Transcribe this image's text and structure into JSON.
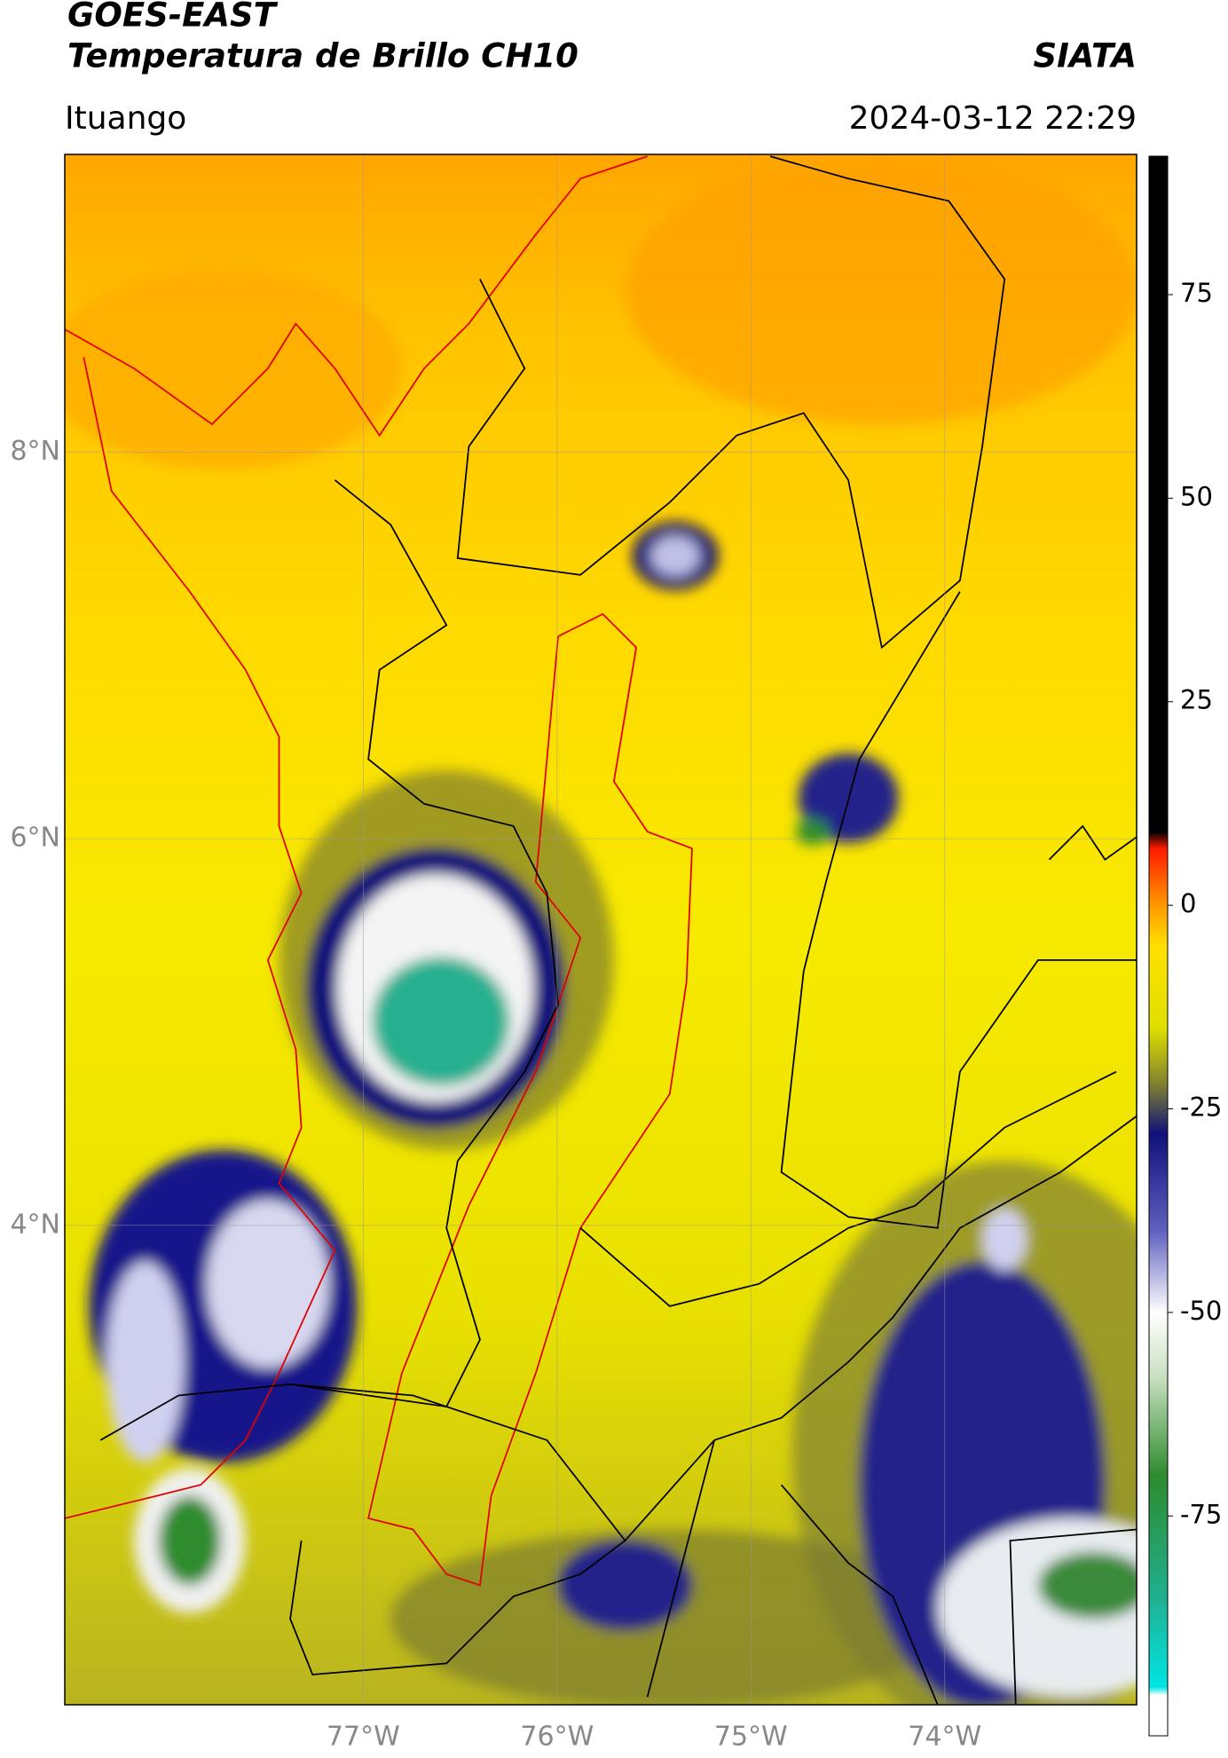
{
  "header": {
    "title": "GOES-EAST",
    "subtitle": "Temperatura de Brillo CH10",
    "source": "SIATA",
    "location": "Ituango",
    "datetime": "2024-03-12 22:29"
  },
  "map": {
    "xlim": [
      -78.54,
      -73.01
    ],
    "ylim": [
      1.52,
      9.54
    ],
    "xticks": [
      {
        "value": -77,
        "label": "77°W"
      },
      {
        "value": -76,
        "label": "76°W"
      },
      {
        "value": -75,
        "label": "75°W"
      },
      {
        "value": -74,
        "label": "74°W"
      }
    ],
    "yticks": [
      {
        "value": 4,
        "label": "4°N"
      },
      {
        "value": 6,
        "label": "6°N"
      },
      {
        "value": 8,
        "label": "8°N"
      }
    ],
    "grid": true
  },
  "colorbar": {
    "lim": [
      -102,
      92
    ],
    "ticks": [
      -75,
      -50,
      -25,
      0,
      25,
      50,
      75
    ],
    "colormap": [
      {
        "value": -102,
        "color": "#ffffff"
      },
      {
        "value": -97,
        "color": "#ffffff"
      },
      {
        "value": -96,
        "color": "#00e5e5"
      },
      {
        "value": -85,
        "color": "#20b090"
      },
      {
        "value": -70,
        "color": "#2e8b2e"
      },
      {
        "value": -58,
        "color": "#c8e0c0"
      },
      {
        "value": -50,
        "color": "#ffffff"
      },
      {
        "value": -40,
        "color": "#6060c0"
      },
      {
        "value": -28,
        "color": "#10107a"
      },
      {
        "value": -22,
        "color": "#808030"
      },
      {
        "value": -15,
        "color": "#e0e000"
      },
      {
        "value": -5,
        "color": "#ffe000"
      },
      {
        "value": 0,
        "color": "#ff9900"
      },
      {
        "value": 7,
        "color": "#ff1a00"
      },
      {
        "value": 9,
        "color": "#000000"
      },
      {
        "value": 92,
        "color": "#000000"
      }
    ]
  }
}
